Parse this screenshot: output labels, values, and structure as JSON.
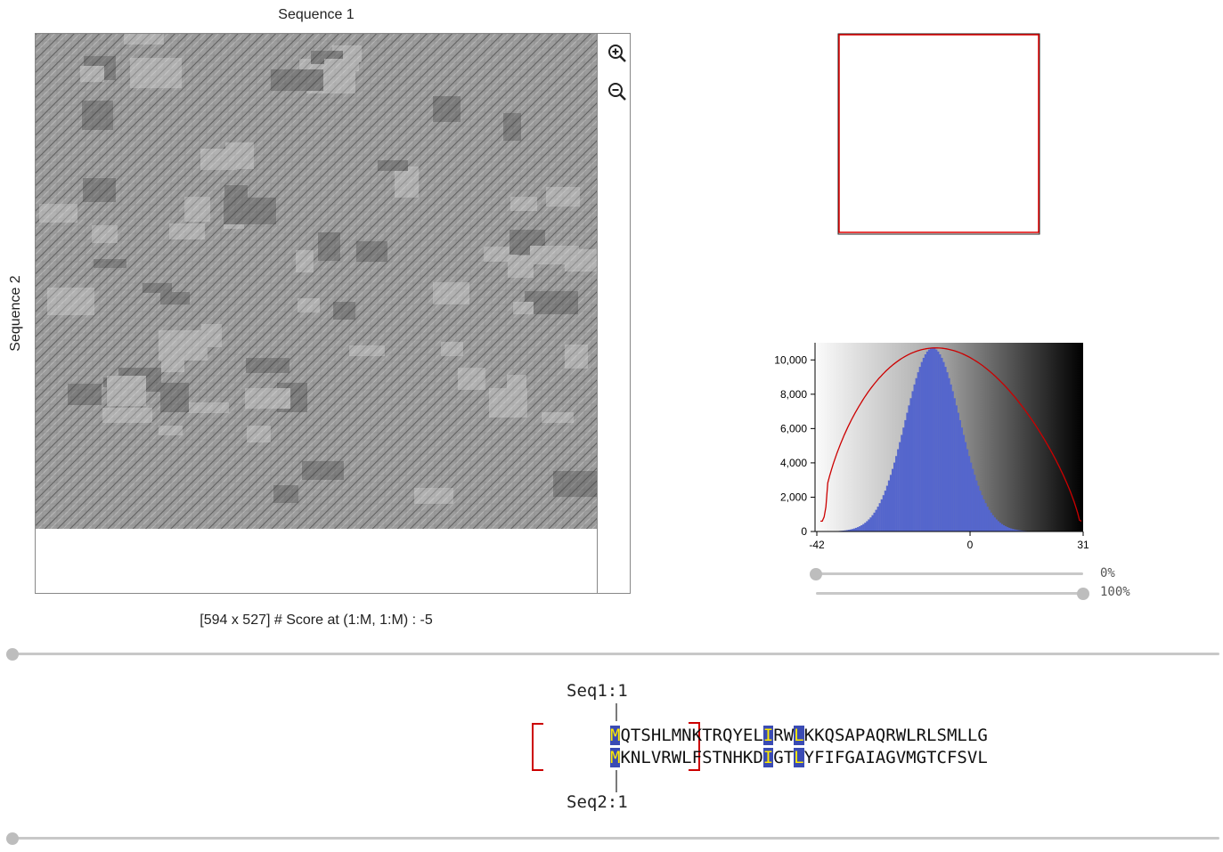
{
  "dotplot": {
    "xlabel": "Sequence 1",
    "ylabel": "Sequence 2",
    "status": "[594 x 527] # Score at (1:M, 1:M) : -5"
  },
  "toolbar": {
    "zoom_in_icon": "zoom-in-icon",
    "zoom_out_icon": "zoom-out-icon"
  },
  "colors": {
    "accent_red": "#e00000",
    "bar_blue": "#5566cc",
    "highlight_bg": "#3a4bb4",
    "highlight_fg": "#ffeb00"
  },
  "histogram": {
    "y_ticks": [
      "0",
      "2,000",
      "4,000",
      "6,000",
      "8,000",
      "10,000"
    ],
    "x_ticks": [
      "-42",
      "0",
      "31"
    ],
    "slider_low": "0%",
    "slider_high": "100%"
  },
  "chart_data": {
    "type": "bar",
    "x_range": [
      -42,
      31
    ],
    "ylim": [
      0,
      11000
    ],
    "note_peak": 10700
  },
  "alignment": {
    "seq1_label": "Seq1:1",
    "seq2_label": "Seq2:1",
    "seq1": "MQTSHLMNKTRQYELIRWLKKQSAPAQRWLRLSMLLG",
    "seq2": "MKNLVRWLFSTNHKDIGTLYFIFGAIAGVMGTCFSVL",
    "highlight_positions": [
      0,
      15,
      18
    ]
  }
}
